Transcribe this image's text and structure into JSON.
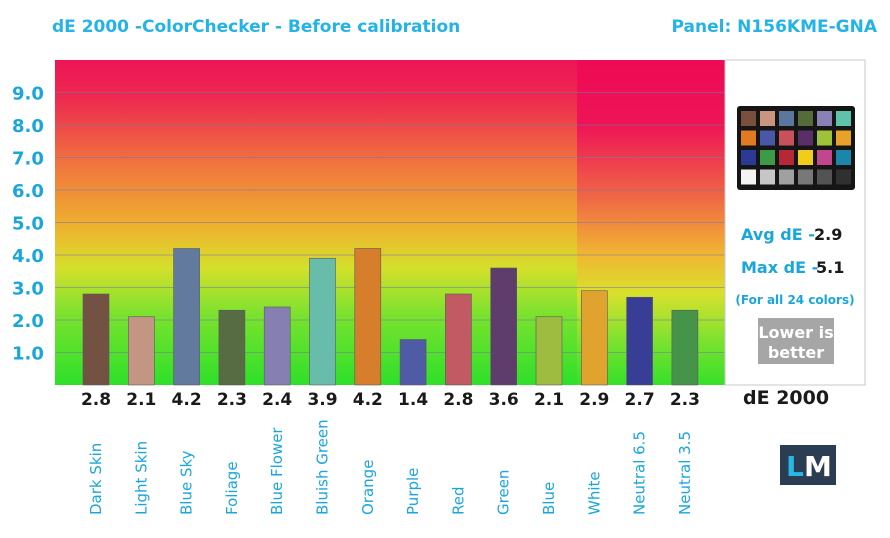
{
  "chart_data": {
    "type": "bar",
    "title": "dE 2000 -ColorChecker  - Before calibration",
    "panel": "Panel: N156KME-GNA",
    "categories": [
      "Dark Skin",
      "Light Skin",
      "Blue Sky",
      "Foliage",
      "Blue Flower",
      "Bluish Green",
      "Orange",
      "Purple",
      "Red",
      "Green",
      "Blue",
      "White",
      "Neutral 6.5",
      "Neutral 3.5"
    ],
    "values": [
      2.8,
      2.1,
      4.2,
      2.3,
      2.4,
      3.9,
      4.2,
      1.4,
      2.8,
      3.6,
      2.1,
      2.9,
      2.7,
      2.3
    ],
    "value_labels": [
      "2.8",
      "2.1",
      "4.2",
      "2.3",
      "2.4",
      "3.9",
      "4.2",
      "1.4",
      "2.8",
      "3.6",
      "2.1",
      "2.9",
      "2.7",
      "2.3"
    ],
    "bar_colors": [
      "#735244",
      "#c29682",
      "#627a9d",
      "#576c43",
      "#8580b1",
      "#67bdaa",
      "#d67e2c",
      "#505ba6",
      "#c15a63",
      "#5e3c6c",
      "#9dbc40",
      "#e0a32e",
      "#383d96",
      "#469449"
    ],
    "yticks": [
      "1.0",
      "2.0",
      "3.0",
      "4.0",
      "5.0",
      "6.0",
      "7.0",
      "8.0",
      "9.0"
    ],
    "ylim": [
      0,
      10
    ],
    "grid": true,
    "xlabel": "",
    "ylabel": "",
    "legend": "none"
  },
  "stats": {
    "avg_label": "Avg dE -",
    "avg_value": "2.9",
    "max_label": "Max dE -",
    "max_value": "5.1",
    "note": "(For all 24 colors)",
    "lower_line1": "Lower is",
    "lower_line2": "better",
    "metric": "dE 2000"
  },
  "logo": {
    "text_l": "L",
    "text_m": "M"
  },
  "colors": {
    "accent": "#1aa6dc",
    "swatches": [
      "#7a4f3e",
      "#c9957f",
      "#5b77a0",
      "#556b3a",
      "#8a82b4",
      "#5fc2aa",
      "#e07b21",
      "#4857a6",
      "#c8525c",
      "#5a2f67",
      "#9ec23a",
      "#e8a22a",
      "#2c3a93",
      "#3d9a46",
      "#b62836",
      "#f1cc1a",
      "#c0468d",
      "#1b86aa",
      "#f3f3f3",
      "#c6c6c6",
      "#a0a0a0",
      "#787878",
      "#535353",
      "#303030"
    ]
  }
}
